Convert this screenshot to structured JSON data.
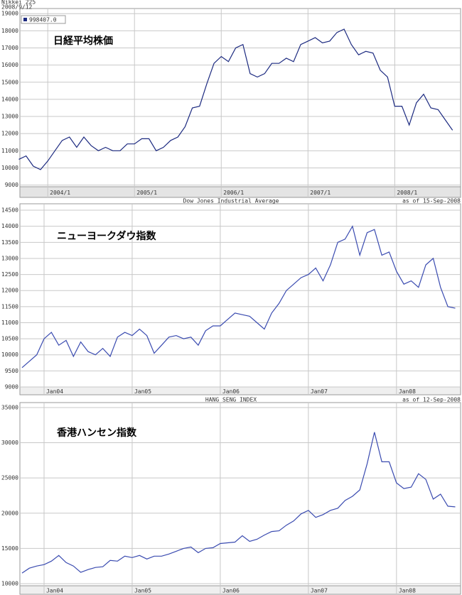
{
  "chart_data": [
    {
      "type": "line",
      "title": "Nikkei 225",
      "subtitle": "2008/9/12",
      "annotation": "日経平均株価",
      "x": [
        null,
        null,
        null,
        null,
        "2004/1",
        null,
        null,
        null,
        null,
        null,
        null,
        null,
        null,
        null,
        null,
        null,
        "2005/1",
        null,
        null,
        null,
        null,
        null,
        null,
        null,
        null,
        null,
        null,
        null,
        "2006/1",
        null,
        null,
        null,
        null,
        null,
        null,
        null,
        null,
        null,
        null,
        null,
        "2007/1",
        null,
        null,
        null,
        null,
        null,
        null,
        null,
        null,
        null,
        null,
        null,
        "2008/1",
        null,
        null,
        null,
        null,
        null,
        null,
        null,
        null
      ],
      "series": [
        {
          "name": "998407.0",
          "color": "#1c2a80",
          "values": [
            10500,
            10700,
            10100,
            9900,
            10400,
            11000,
            11600,
            11800,
            11200,
            11800,
            11300,
            11000,
            11200,
            11000,
            11000,
            11400,
            11400,
            11700,
            11700,
            11000,
            11200,
            11600,
            11800,
            12400,
            13500,
            13600,
            14900,
            16100,
            16500,
            16200,
            17000,
            17200,
            15500,
            15300,
            15500,
            16100,
            16100,
            16400,
            16200,
            17200,
            17400,
            17600,
            17300,
            17400,
            17900,
            18100,
            17200,
            16600,
            16800,
            16700,
            15700,
            15300,
            13600,
            13600,
            12500,
            13800,
            14300,
            13500,
            13400,
            12800,
            12200
          ]
        }
      ],
      "ylim": [
        8900,
        19300
      ],
      "yticks": [
        9000,
        10000,
        11000,
        12000,
        13000,
        14000,
        15000,
        16000,
        17000,
        18000,
        19000
      ],
      "grid": true,
      "legend": "upper left"
    },
    {
      "type": "line",
      "title": "Dow Jones Industrial Average",
      "subtitle": "as of 15-Sep-2008",
      "annotation": "ニューヨークダウ指数",
      "x": [
        null,
        null,
        null,
        "Jan04",
        null,
        null,
        null,
        null,
        null,
        null,
        null,
        null,
        null,
        null,
        null,
        "Jan05",
        null,
        null,
        null,
        null,
        null,
        null,
        null,
        null,
        null,
        null,
        null,
        "Jan06",
        null,
        null,
        null,
        null,
        null,
        null,
        null,
        null,
        null,
        null,
        null,
        "Jan07",
        null,
        null,
        null,
        null,
        null,
        null,
        null,
        null,
        null,
        null,
        null,
        "Jan08",
        null,
        null,
        null,
        null,
        null,
        null,
        null,
        null
      ],
      "color": "#3a4bb0",
      "values": [
        9600,
        9800,
        10000,
        10500,
        10700,
        10300,
        10450,
        9950,
        10400,
        10100,
        10000,
        10200,
        9950,
        10550,
        10700,
        10600,
        10800,
        10600,
        10050,
        10300,
        10550,
        10600,
        10500,
        10550,
        10300,
        10750,
        10900,
        10900,
        11100,
        11300,
        11250,
        11200,
        11000,
        10800,
        11300,
        11600,
        12000,
        12200,
        12400,
        12500,
        12700,
        12300,
        12800,
        13500,
        13600,
        14000,
        13100,
        13800,
        13900,
        13100,
        13200,
        12600,
        12200,
        12300,
        12100,
        12800,
        13000,
        12100,
        11500,
        11450
      ],
      "ylim": [
        9000,
        14700
      ],
      "yticks": [
        9000,
        9500,
        10000,
        10500,
        11000,
        11500,
        12000,
        12500,
        13000,
        13500,
        14000,
        14500
      ],
      "grid": true
    },
    {
      "type": "line",
      "title": "HANG SENG INDEX",
      "subtitle": "as of 12-Sep-2008",
      "annotation": "香港ハンセン指数",
      "x": [
        null,
        null,
        null,
        "Jan04",
        null,
        null,
        null,
        null,
        null,
        null,
        null,
        null,
        null,
        null,
        null,
        "Jan05",
        null,
        null,
        null,
        null,
        null,
        null,
        null,
        null,
        null,
        null,
        null,
        "Jan06",
        null,
        null,
        null,
        null,
        null,
        null,
        null,
        null,
        null,
        null,
        null,
        "Jan07",
        null,
        null,
        null,
        null,
        null,
        null,
        null,
        null,
        null,
        null,
        null,
        "Jan08",
        null,
        null,
        null,
        null,
        null,
        null,
        null,
        null
      ],
      "color": "#3a4bb0",
      "values": [
        11500,
        12200,
        12500,
        12700,
        13200,
        14000,
        13000,
        12500,
        11600,
        12000,
        12300,
        12400,
        13300,
        13200,
        13900,
        13700,
        14000,
        13500,
        13900,
        13900,
        14200,
        14600,
        15000,
        15200,
        14400,
        15000,
        15100,
        15700,
        15800,
        15900,
        16800,
        16000,
        16300,
        16900,
        17400,
        17500,
        18300,
        18900,
        19900,
        20400,
        19400,
        19800,
        20400,
        20700,
        21800,
        22400,
        23300,
        27000,
        31500,
        27300,
        27300,
        24300,
        23500,
        23700,
        25600,
        24800,
        22000,
        22700,
        21000,
        20900
      ],
      "ylim": [
        9700,
        35700
      ],
      "yticks": [
        10000,
        15000,
        20000,
        25000,
        30000,
        35000
      ],
      "grid": true
    }
  ]
}
